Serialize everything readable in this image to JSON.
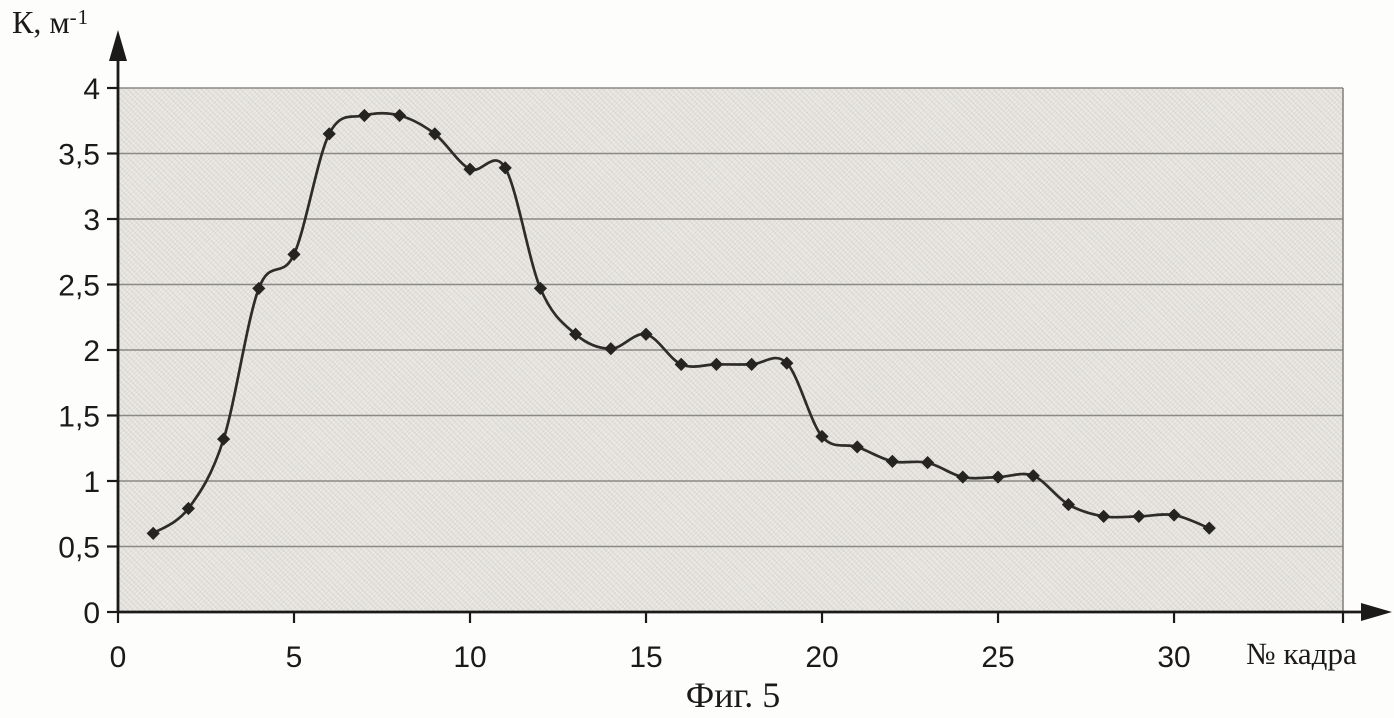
{
  "figure": {
    "y_axis_title_base": "К, м",
    "y_axis_title_sup": "-1",
    "x_axis_title": "№ кадра",
    "caption": "Фиг. 5"
  },
  "chart_data": {
    "type": "line",
    "title": "",
    "xlabel": "№ кадра",
    "ylabel": "К, м⁻¹",
    "x": [
      1,
      2,
      3,
      4,
      5,
      6,
      7,
      8,
      9,
      10,
      11,
      12,
      13,
      14,
      15,
      16,
      17,
      18,
      19,
      20,
      21,
      22,
      23,
      24,
      25,
      26,
      27,
      28,
      29,
      30,
      31
    ],
    "y": [
      0.6,
      0.79,
      1.32,
      2.47,
      2.73,
      3.65,
      3.79,
      3.79,
      3.65,
      3.38,
      3.39,
      2.47,
      2.12,
      2.01,
      2.12,
      1.89,
      1.89,
      1.89,
      1.9,
      1.34,
      1.26,
      1.15,
      1.14,
      1.03,
      1.03,
      1.04,
      0.82,
      0.73,
      0.73,
      0.74,
      0.64
    ],
    "xlim": [
      0,
      34.8
    ],
    "ylim": [
      0,
      4
    ],
    "x_ticks": [
      0,
      5,
      10,
      15,
      20,
      25,
      30
    ],
    "x_tick_labels": [
      "0",
      "5",
      "10",
      "15",
      "20",
      "25",
      "30"
    ],
    "y_ticks": [
      0,
      0.5,
      1,
      1.5,
      2,
      2.5,
      3,
      3.5,
      4
    ],
    "y_tick_labels": [
      "0",
      "0,5",
      "1",
      "1,5",
      "2",
      "2,5",
      "3",
      "3,5",
      "4"
    ],
    "grid": "horizontal",
    "legend": "none",
    "line_style": "smoothed",
    "marker": "diamond",
    "colors": {
      "line": "#2e2c29",
      "marker": "#262421",
      "grid": "#8b8985",
      "axis": "#1c1a18",
      "plot_bg": "#eae8e3",
      "page_bg": "#fdfdfb"
    }
  }
}
